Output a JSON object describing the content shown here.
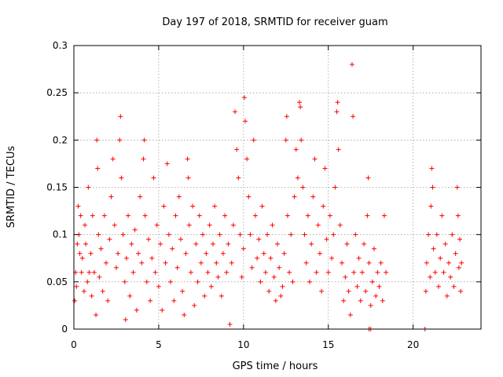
{
  "chart_data": {
    "type": "scatter",
    "title": "Day 197 of 2018, SRMTID for receiver guam",
    "xlabel": "GPS time / hours",
    "ylabel": "SRMTID / TECUs",
    "xlim": [
      0,
      24
    ],
    "ylim": [
      0,
      0.3
    ],
    "x_ticks": [
      "0",
      "5",
      "10",
      "15",
      "20"
    ],
    "y_ticks": [
      "0",
      "0.05",
      "0.1",
      "0.15",
      "0.2",
      "0.25",
      "0.3"
    ],
    "grid": true,
    "marker": "plus",
    "color": "#ff0000",
    "series": [
      {
        "values": [
          [
            0.05,
            0.03
          ],
          [
            0.1,
            0.06
          ],
          [
            0.15,
            0.045
          ],
          [
            0.2,
            0.09
          ],
          [
            0.25,
            0.13
          ],
          [
            0.3,
            0.1
          ],
          [
            0.35,
            0.08
          ],
          [
            0.4,
            0.12
          ],
          [
            0.45,
            0.06
          ],
          [
            0.5,
            0.075
          ],
          [
            0.6,
            0.04
          ],
          [
            0.65,
            0.11
          ],
          [
            0.7,
            0.09
          ],
          [
            0.8,
            0.05
          ],
          [
            0.85,
            0.15
          ],
          [
            0.9,
            0.06
          ],
          [
            1.0,
            0.08
          ],
          [
            1.05,
            0.035
          ],
          [
            1.1,
            0.12
          ],
          [
            1.2,
            0.06
          ],
          [
            1.3,
            0.015
          ],
          [
            1.35,
            0.2
          ],
          [
            1.4,
            0.17
          ],
          [
            1.45,
            0.1
          ],
          [
            1.5,
            0.055
          ],
          [
            1.6,
            0.085
          ],
          [
            1.7,
            0.04
          ],
          [
            1.8,
            0.12
          ],
          [
            1.9,
            0.07
          ],
          [
            2.0,
            0.03
          ],
          [
            2.1,
            0.095
          ],
          [
            2.2,
            0.14
          ],
          [
            2.3,
            0.18
          ],
          [
            2.4,
            0.11
          ],
          [
            2.5,
            0.065
          ],
          [
            2.6,
            0.08
          ],
          [
            2.7,
            0.2
          ],
          [
            2.75,
            0.225
          ],
          [
            2.8,
            0.16
          ],
          [
            2.9,
            0.1
          ],
          [
            3.0,
            0.05
          ],
          [
            3.05,
            0.01
          ],
          [
            3.1,
            0.075
          ],
          [
            3.2,
            0.12
          ],
          [
            3.3,
            0.035
          ],
          [
            3.4,
            0.09
          ],
          [
            3.5,
            0.06
          ],
          [
            3.6,
            0.105
          ],
          [
            3.7,
            0.02
          ],
          [
            3.8,
            0.08
          ],
          [
            3.9,
            0.14
          ],
          [
            4.0,
            0.07
          ],
          [
            4.1,
            0.18
          ],
          [
            4.15,
            0.2
          ],
          [
            4.2,
            0.12
          ],
          [
            4.3,
            0.05
          ],
          [
            4.4,
            0.095
          ],
          [
            4.5,
            0.03
          ],
          [
            4.6,
            0.075
          ],
          [
            4.7,
            0.16
          ],
          [
            4.8,
            0.06
          ],
          [
            4.9,
            0.11
          ],
          [
            5.0,
            0.045
          ],
          [
            5.1,
            0.09
          ],
          [
            5.2,
            0.02
          ],
          [
            5.3,
            0.13
          ],
          [
            5.4,
            0.07
          ],
          [
            5.5,
            0.175
          ],
          [
            5.6,
            0.1
          ],
          [
            5.7,
            0.05
          ],
          [
            5.8,
            0.085
          ],
          [
            5.9,
            0.03
          ],
          [
            6.0,
            0.12
          ],
          [
            6.1,
            0.065
          ],
          [
            6.2,
            0.14
          ],
          [
            6.3,
            0.095
          ],
          [
            6.4,
            0.04
          ],
          [
            6.5,
            0.015
          ],
          [
            6.6,
            0.08
          ],
          [
            6.7,
            0.18
          ],
          [
            6.75,
            0.16
          ],
          [
            6.8,
            0.11
          ],
          [
            6.9,
            0.06
          ],
          [
            7.0,
            0.13
          ],
          [
            7.1,
            0.025
          ],
          [
            7.2,
            0.09
          ],
          [
            7.3,
            0.05
          ],
          [
            7.4,
            0.12
          ],
          [
            7.5,
            0.07
          ],
          [
            7.6,
            0.1
          ],
          [
            7.7,
            0.035
          ],
          [
            7.8,
            0.08
          ],
          [
            7.9,
            0.06
          ],
          [
            8.0,
            0.11
          ],
          [
            8.1,
            0.045
          ],
          [
            8.2,
            0.09
          ],
          [
            8.3,
            0.13
          ],
          [
            8.4,
            0.07
          ],
          [
            8.5,
            0.055
          ],
          [
            8.6,
            0.1
          ],
          [
            8.7,
            0.035
          ],
          [
            8.8,
            0.08
          ],
          [
            8.9,
            0.12
          ],
          [
            9.0,
            0.06
          ],
          [
            9.1,
            0.09
          ],
          [
            9.2,
            0.005
          ],
          [
            9.3,
            0.07
          ],
          [
            9.4,
            0.11
          ],
          [
            9.5,
            0.23
          ],
          [
            9.6,
            0.19
          ],
          [
            9.7,
            0.16
          ],
          [
            9.8,
            0.1
          ],
          [
            9.9,
            0.055
          ],
          [
            10.0,
            0.085
          ],
          [
            10.05,
            0.245
          ],
          [
            10.1,
            0.22
          ],
          [
            10.2,
            0.18
          ],
          [
            10.3,
            0.14
          ],
          [
            10.4,
            0.1
          ],
          [
            10.5,
            0.065
          ],
          [
            10.6,
            0.2
          ],
          [
            10.7,
            0.12
          ],
          [
            10.8,
            0.075
          ],
          [
            10.9,
            0.095
          ],
          [
            11.0,
            0.05
          ],
          [
            11.1,
            0.13
          ],
          [
            11.2,
            0.08
          ],
          [
            11.3,
            0.06
          ],
          [
            11.4,
            0.1
          ],
          [
            11.5,
            0.04
          ],
          [
            11.6,
            0.075
          ],
          [
            11.7,
            0.11
          ],
          [
            11.8,
            0.055
          ],
          [
            11.9,
            0.03
          ],
          [
            12.0,
            0.09
          ],
          [
            12.1,
            0.065
          ],
          [
            12.2,
            0.035
          ],
          [
            12.3,
            0.045
          ],
          [
            12.4,
            0.08
          ],
          [
            12.5,
            0.2
          ],
          [
            12.55,
            0.225
          ],
          [
            12.6,
            0.12
          ],
          [
            12.7,
            0.06
          ],
          [
            12.8,
            0.1
          ],
          [
            12.9,
            0.05
          ],
          [
            13.0,
            0.14
          ],
          [
            13.1,
            0.19
          ],
          [
            13.2,
            0.16
          ],
          [
            13.3,
            0.24
          ],
          [
            13.35,
            0.235
          ],
          [
            13.4,
            0.2
          ],
          [
            13.5,
            0.15
          ],
          [
            13.6,
            0.1
          ],
          [
            13.7,
            0.07
          ],
          [
            13.8,
            0.12
          ],
          [
            13.9,
            0.05
          ],
          [
            14.0,
            0.09
          ],
          [
            14.1,
            0.14
          ],
          [
            14.2,
            0.18
          ],
          [
            14.3,
            0.06
          ],
          [
            14.4,
            0.11
          ],
          [
            14.5,
            0.08
          ],
          [
            14.6,
            0.04
          ],
          [
            14.7,
            0.13
          ],
          [
            14.8,
            0.17
          ],
          [
            14.9,
            0.095
          ],
          [
            15.0,
            0.06
          ],
          [
            15.1,
            0.12
          ],
          [
            15.2,
            0.075
          ],
          [
            15.3,
            0.1
          ],
          [
            15.4,
            0.15
          ],
          [
            15.5,
            0.23
          ],
          [
            15.55,
            0.24
          ],
          [
            15.6,
            0.19
          ],
          [
            15.7,
            0.11
          ],
          [
            15.8,
            0.07
          ],
          [
            15.9,
            0.03
          ],
          [
            16.0,
            0.055
          ],
          [
            16.1,
            0.09
          ],
          [
            16.2,
            0.04
          ],
          [
            16.3,
            0.015
          ],
          [
            16.4,
            0.28
          ],
          [
            16.45,
            0.225
          ],
          [
            16.5,
            0.06
          ],
          [
            16.6,
            0.1
          ],
          [
            16.7,
            0.045
          ],
          [
            16.8,
            0.075
          ],
          [
            16.9,
            0.03
          ],
          [
            17.0,
            0.06
          ],
          [
            17.1,
            0.09
          ],
          [
            17.2,
            0.04
          ],
          [
            17.3,
            0.12
          ],
          [
            17.35,
            0.16
          ],
          [
            17.4,
            0.07
          ],
          [
            17.5,
            0.025
          ],
          [
            17.6,
            0.05
          ],
          [
            17.7,
            0.085
          ],
          [
            17.8,
            0.035
          ],
          [
            17.9,
            0.06
          ],
          [
            18.0,
            0.045
          ],
          [
            18.1,
            0.07
          ],
          [
            18.2,
            0.03
          ],
          [
            18.3,
            0.12
          ],
          [
            18.4,
            0.06
          ],
          [
            17.4,
            0.0
          ],
          [
            17.5,
            0.0
          ],
          [
            20.7,
            0.0
          ],
          [
            20.75,
            0.04
          ],
          [
            20.8,
            0.07
          ],
          [
            20.9,
            0.1
          ],
          [
            21.0,
            0.055
          ],
          [
            21.05,
            0.13
          ],
          [
            21.1,
            0.17
          ],
          [
            21.15,
            0.15
          ],
          [
            21.2,
            0.085
          ],
          [
            21.3,
            0.06
          ],
          [
            21.4,
            0.1
          ],
          [
            21.5,
            0.045
          ],
          [
            21.6,
            0.075
          ],
          [
            21.7,
            0.12
          ],
          [
            21.8,
            0.06
          ],
          [
            21.9,
            0.09
          ],
          [
            22.0,
            0.035
          ],
          [
            22.1,
            0.07
          ],
          [
            22.2,
            0.055
          ],
          [
            22.3,
            0.1
          ],
          [
            22.4,
            0.045
          ],
          [
            22.5,
            0.08
          ],
          [
            22.6,
            0.15
          ],
          [
            22.65,
            0.12
          ],
          [
            22.7,
            0.065
          ],
          [
            22.75,
            0.095
          ],
          [
            22.8,
            0.04
          ],
          [
            22.85,
            0.07
          ]
        ]
      }
    ]
  }
}
